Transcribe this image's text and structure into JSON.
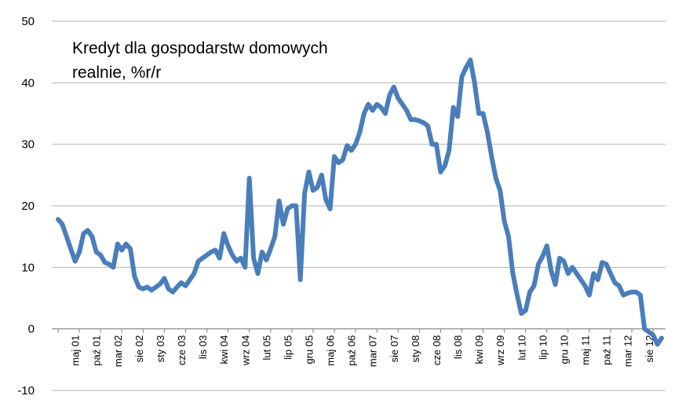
{
  "chart_data": {
    "type": "line",
    "title_lines": [
      "Kredyt dla gospodarstw domowych",
      "realnie, %r/r"
    ],
    "ylim": [
      -10,
      50
    ],
    "y_ticks": [
      -10,
      0,
      10,
      20,
      30,
      40,
      50
    ],
    "grid": true,
    "x_tick_labels": [
      "maj 01",
      "paź 01",
      "mar 02",
      "sie 02",
      "sty 03",
      "cze 03",
      "lis 03",
      "kwi 04",
      "wrz 04",
      "lut 05",
      "lip 05",
      "gru 05",
      "maj 06",
      "paź 06",
      "mar 07",
      "sie 07",
      "sty 08",
      "cze 08",
      "lis 08",
      "kwi 09",
      "wrz 09",
      "lut 10",
      "lip 10",
      "gru 10",
      "maj 11",
      "paź 11",
      "mar 12",
      "sie 12"
    ],
    "x_tick_index": [
      4,
      9,
      14,
      19,
      24,
      29,
      34,
      39,
      44,
      49,
      54,
      59,
      64,
      69,
      74,
      79,
      84,
      89,
      94,
      99,
      104,
      109,
      114,
      119,
      124,
      129,
      134,
      139
    ],
    "series": [
      {
        "color": "#4a7ebb",
        "values": [
          17.8,
          17.0,
          15.0,
          13.0,
          11.0,
          12.5,
          15.5,
          16.0,
          15.0,
          12.5,
          12.0,
          10.8,
          10.5,
          10.0,
          13.8,
          12.8,
          13.8,
          13.0,
          8.5,
          6.8,
          6.5,
          6.8,
          6.3,
          6.8,
          7.3,
          8.2,
          6.5,
          6.0,
          6.8,
          7.5,
          7.0,
          8.0,
          9.0,
          11.0,
          11.5,
          12.0,
          12.5,
          12.8,
          11.5,
          15.5,
          13.5,
          12.0,
          11.0,
          11.5,
          10.0,
          24.5,
          11.5,
          9.0,
          12.5,
          11.2,
          13.0,
          15.0,
          20.8,
          17.0,
          19.5,
          20.0,
          20.0,
          8.0,
          22.0,
          25.5,
          22.5,
          23.0,
          25.0,
          21.0,
          19.5,
          28.0,
          27.0,
          27.5,
          29.8,
          29.0,
          30.0,
          32.0,
          35.0,
          36.5,
          35.5,
          36.5,
          36.0,
          35.0,
          38.0,
          39.3,
          37.5,
          36.5,
          35.5,
          34.0,
          34.0,
          33.8,
          33.5,
          33.0,
          30.0,
          30.0,
          25.5,
          26.5,
          29.0,
          36.0,
          34.5,
          41.0,
          42.5,
          43.7,
          40.0,
          35.0,
          35.0,
          32.0,
          28.0,
          24.5,
          22.5,
          17.5,
          15.0,
          9.0,
          5.5,
          2.5,
          3.0,
          6.0,
          7.0,
          10.5,
          11.8,
          13.5,
          9.5,
          7.2,
          11.5,
          11.0,
          9.0,
          10.0,
          9.0,
          8.0,
          7.0,
          5.5,
          9.0,
          8.0,
          10.8,
          10.5,
          9.0,
          7.5,
          7.0,
          5.5,
          5.8,
          6.0,
          6.0,
          5.5,
          0.0,
          -0.5,
          -1.0,
          -2.5,
          -1.5
        ]
      }
    ]
  }
}
